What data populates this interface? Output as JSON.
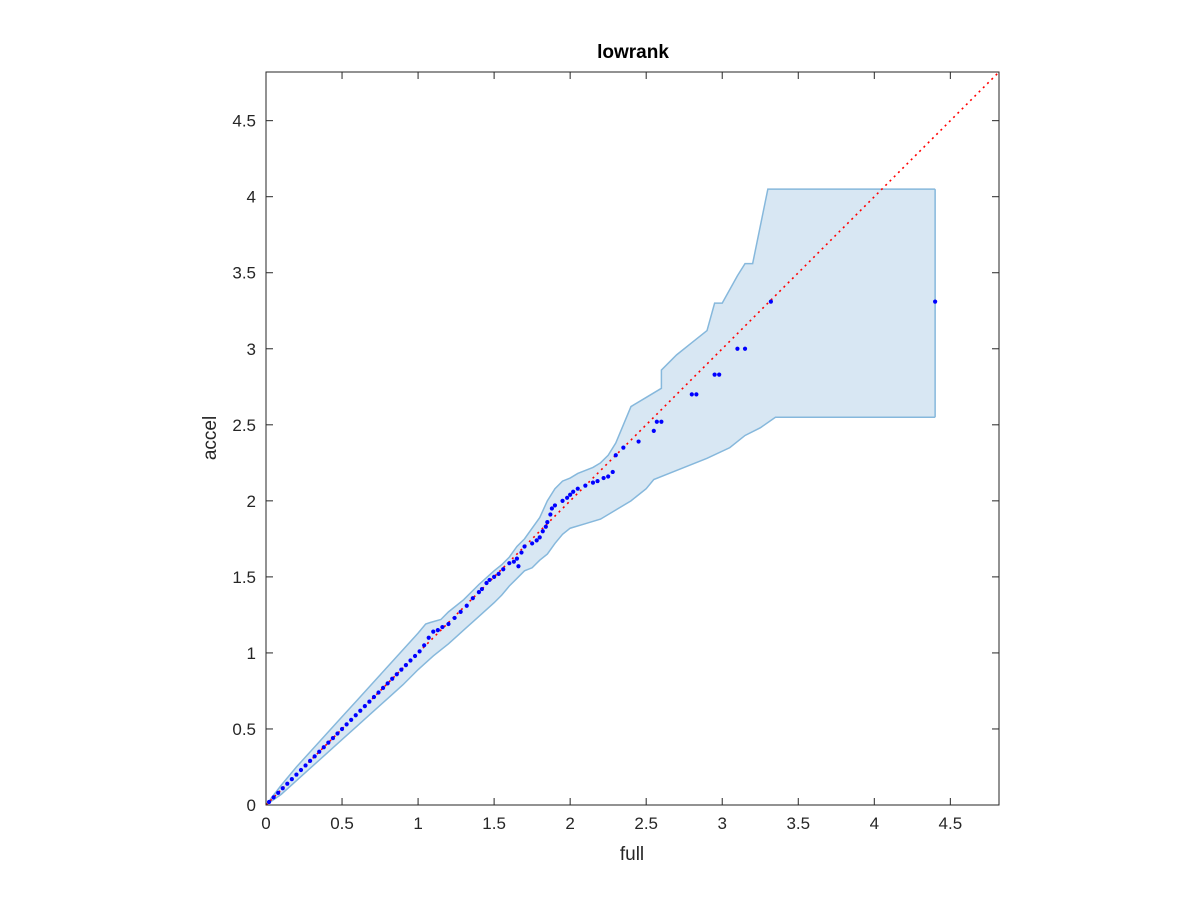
{
  "chart_data": {
    "type": "scatter",
    "title": "lowrank",
    "xlabel": "full",
    "ylabel": "accel",
    "xlim": [
      0,
      4.82
    ],
    "ylim": [
      0,
      4.82
    ],
    "xticks": [
      0,
      0.5,
      1,
      1.5,
      2,
      2.5,
      3,
      3.5,
      4,
      4.5
    ],
    "yticks": [
      0,
      0.5,
      1,
      1.5,
      2,
      2.5,
      3,
      3.5,
      4,
      4.5
    ],
    "xtick_labels": [
      "0",
      "0.5",
      "1",
      "1.5",
      "2",
      "2.5",
      "3",
      "3.5",
      "4",
      "4.5"
    ],
    "ytick_labels": [
      "0",
      "0.5",
      "1",
      "1.5",
      "2",
      "2.5",
      "3",
      "3.5",
      "4",
      "4.5"
    ],
    "grid": false,
    "reference_line": {
      "type": "y=x",
      "style": "dotted",
      "color": "#ff0000"
    },
    "band": {
      "fill": "#d8e7f3",
      "edge": "#86b8dc",
      "upper": [
        [
          0,
          0
        ],
        [
          0.1,
          0.13
        ],
        [
          0.2,
          0.25
        ],
        [
          0.3,
          0.36
        ],
        [
          0.4,
          0.47
        ],
        [
          0.5,
          0.58
        ],
        [
          0.6,
          0.69
        ],
        [
          0.7,
          0.8
        ],
        [
          0.8,
          0.91
        ],
        [
          0.9,
          1.02
        ],
        [
          1.0,
          1.13
        ],
        [
          1.05,
          1.19
        ],
        [
          1.08,
          1.2
        ],
        [
          1.15,
          1.22
        ],
        [
          1.2,
          1.27
        ],
        [
          1.3,
          1.35
        ],
        [
          1.4,
          1.45
        ],
        [
          1.5,
          1.54
        ],
        [
          1.55,
          1.58
        ],
        [
          1.6,
          1.63
        ],
        [
          1.65,
          1.7
        ],
        [
          1.7,
          1.75
        ],
        [
          1.75,
          1.82
        ],
        [
          1.8,
          1.89
        ],
        [
          1.85,
          2.0
        ],
        [
          1.9,
          2.08
        ],
        [
          1.95,
          2.13
        ],
        [
          2.0,
          2.15
        ],
        [
          2.05,
          2.18
        ],
        [
          2.1,
          2.2
        ],
        [
          2.15,
          2.22
        ],
        [
          2.2,
          2.25
        ],
        [
          2.25,
          2.3
        ],
        [
          2.3,
          2.38
        ],
        [
          2.35,
          2.5
        ],
        [
          2.4,
          2.62
        ],
        [
          2.5,
          2.68
        ],
        [
          2.6,
          2.74
        ],
        [
          2.6,
          2.86
        ],
        [
          2.7,
          2.96
        ],
        [
          2.8,
          3.04
        ],
        [
          2.9,
          3.12
        ],
        [
          2.95,
          3.3
        ],
        [
          3.0,
          3.3
        ],
        [
          3.1,
          3.48
        ],
        [
          3.15,
          3.56
        ],
        [
          3.2,
          3.56
        ],
        [
          3.3,
          4.05
        ],
        [
          4.4,
          4.05
        ]
      ],
      "lower": [
        [
          0,
          0
        ],
        [
          0.1,
          0.07
        ],
        [
          0.2,
          0.16
        ],
        [
          0.3,
          0.25
        ],
        [
          0.4,
          0.34
        ],
        [
          0.5,
          0.43
        ],
        [
          0.6,
          0.52
        ],
        [
          0.7,
          0.61
        ],
        [
          0.8,
          0.7
        ],
        [
          0.9,
          0.79
        ],
        [
          1.0,
          0.89
        ],
        [
          1.1,
          0.98
        ],
        [
          1.2,
          1.06
        ],
        [
          1.3,
          1.15
        ],
        [
          1.4,
          1.24
        ],
        [
          1.5,
          1.33
        ],
        [
          1.55,
          1.38
        ],
        [
          1.6,
          1.44
        ],
        [
          1.65,
          1.49
        ],
        [
          1.7,
          1.54
        ],
        [
          1.75,
          1.56
        ],
        [
          1.8,
          1.61
        ],
        [
          1.85,
          1.65
        ],
        [
          1.9,
          1.72
        ],
        [
          1.95,
          1.78
        ],
        [
          2.0,
          1.82
        ],
        [
          2.1,
          1.85
        ],
        [
          2.2,
          1.88
        ],
        [
          2.3,
          1.94
        ],
        [
          2.4,
          2.0
        ],
        [
          2.5,
          2.08
        ],
        [
          2.55,
          2.14
        ],
        [
          2.7,
          2.2
        ],
        [
          2.9,
          2.28
        ],
        [
          3.05,
          2.35
        ],
        [
          3.15,
          2.43
        ],
        [
          3.25,
          2.48
        ],
        [
          3.35,
          2.55
        ],
        [
          4.4,
          2.55
        ]
      ]
    },
    "series": [
      {
        "color": "#0000ff",
        "points": [
          [
            0.02,
            0.02
          ],
          [
            0.05,
            0.05
          ],
          [
            0.08,
            0.08
          ],
          [
            0.11,
            0.11
          ],
          [
            0.14,
            0.14
          ],
          [
            0.17,
            0.17
          ],
          [
            0.2,
            0.2
          ],
          [
            0.23,
            0.23
          ],
          [
            0.26,
            0.26
          ],
          [
            0.29,
            0.29
          ],
          [
            0.32,
            0.32
          ],
          [
            0.35,
            0.35
          ],
          [
            0.38,
            0.38
          ],
          [
            0.41,
            0.41
          ],
          [
            0.44,
            0.44
          ],
          [
            0.47,
            0.47
          ],
          [
            0.5,
            0.5
          ],
          [
            0.53,
            0.53
          ],
          [
            0.56,
            0.56
          ],
          [
            0.59,
            0.59
          ],
          [
            0.62,
            0.62
          ],
          [
            0.65,
            0.65
          ],
          [
            0.68,
            0.68
          ],
          [
            0.71,
            0.71
          ],
          [
            0.74,
            0.74
          ],
          [
            0.77,
            0.77
          ],
          [
            0.8,
            0.8
          ],
          [
            0.83,
            0.83
          ],
          [
            0.86,
            0.86
          ],
          [
            0.89,
            0.89
          ],
          [
            0.92,
            0.92
          ],
          [
            0.95,
            0.95
          ],
          [
            0.98,
            0.98
          ],
          [
            1.01,
            1.01
          ],
          [
            1.04,
            1.05
          ],
          [
            1.07,
            1.1
          ],
          [
            1.1,
            1.14
          ],
          [
            1.13,
            1.15
          ],
          [
            1.16,
            1.17
          ],
          [
            1.2,
            1.19
          ],
          [
            1.24,
            1.23
          ],
          [
            1.28,
            1.27
          ],
          [
            1.32,
            1.31
          ],
          [
            1.36,
            1.36
          ],
          [
            1.4,
            1.4
          ],
          [
            1.42,
            1.42
          ],
          [
            1.45,
            1.46
          ],
          [
            1.47,
            1.48
          ],
          [
            1.5,
            1.5
          ],
          [
            1.53,
            1.52
          ],
          [
            1.56,
            1.55
          ],
          [
            1.6,
            1.59
          ],
          [
            1.63,
            1.6
          ],
          [
            1.65,
            1.62
          ],
          [
            1.68,
            1.66
          ],
          [
            1.7,
            1.7
          ],
          [
            1.66,
            1.57
          ],
          [
            1.75,
            1.72
          ],
          [
            1.78,
            1.74
          ],
          [
            1.8,
            1.76
          ],
          [
            1.82,
            1.8
          ],
          [
            1.84,
            1.83
          ],
          [
            1.85,
            1.86
          ],
          [
            1.87,
            1.91
          ],
          [
            1.88,
            1.95
          ],
          [
            1.9,
            1.97
          ],
          [
            1.95,
            2.0
          ],
          [
            1.98,
            2.02
          ],
          [
            2.0,
            2.04
          ],
          [
            2.02,
            2.06
          ],
          [
            2.05,
            2.08
          ],
          [
            2.1,
            2.1
          ],
          [
            2.15,
            2.12
          ],
          [
            2.18,
            2.13
          ],
          [
            2.22,
            2.15
          ],
          [
            2.25,
            2.16
          ],
          [
            2.28,
            2.19
          ],
          [
            2.3,
            2.3
          ],
          [
            2.35,
            2.35
          ],
          [
            2.45,
            2.39
          ],
          [
            2.55,
            2.46
          ],
          [
            2.57,
            2.52
          ],
          [
            2.6,
            2.52
          ],
          [
            2.8,
            2.7
          ],
          [
            2.83,
            2.7
          ],
          [
            2.95,
            2.83
          ],
          [
            2.98,
            2.83
          ],
          [
            3.1,
            3.0
          ],
          [
            3.15,
            3.0
          ],
          [
            3.32,
            3.31
          ],
          [
            4.4,
            3.31
          ]
        ]
      }
    ]
  }
}
